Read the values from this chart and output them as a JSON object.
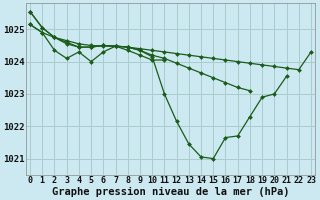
{
  "background_color": "#cce8f0",
  "grid_color": "#aacccc",
  "line_color": "#1a5c1a",
  "xlabel": "Graphe pression niveau de la mer (hPa)",
  "xlabel_fontsize": 7.5,
  "ylabel_fontsize": 6.5,
  "tick_fontsize": 6,
  "ylim": [
    1020.5,
    1025.8
  ],
  "xlim": [
    -0.3,
    23.3
  ],
  "yticks": [
    1021,
    1022,
    1023,
    1024,
    1025
  ],
  "xticks": [
    0,
    1,
    2,
    3,
    4,
    5,
    6,
    7,
    8,
    9,
    10,
    11,
    12,
    13,
    14,
    15,
    16,
    17,
    18,
    19,
    20,
    21,
    22,
    23
  ],
  "series": [
    {
      "x": [
        0,
        1,
        2,
        3,
        4,
        5,
        6,
        7,
        8,
        9,
        10,
        11,
        12,
        13,
        14,
        15,
        16,
        17,
        18,
        19,
        20,
        21,
        22,
        23
      ],
      "y": [
        1025.55,
        1025.05,
        1024.75,
        1024.55,
        1024.45,
        1024.45,
        1024.5,
        1024.48,
        1024.45,
        1024.4,
        1024.35,
        1024.3,
        1024.25,
        1024.2,
        1024.15,
        1024.1,
        1024.05,
        1024.0,
        1023.95,
        1023.9,
        1023.85,
        1023.8,
        1023.75,
        1024.3
      ]
    },
    {
      "x": [
        0,
        1,
        2,
        3,
        4,
        5,
        6,
        7,
        8,
        9,
        10,
        11,
        12,
        13,
        14,
        15,
        16,
        17,
        18,
        19,
        20,
        21
      ],
      "y": [
        1025.55,
        1025.05,
        1024.75,
        1024.6,
        1024.45,
        1024.45,
        1024.5,
        1024.48,
        1024.45,
        1024.35,
        1024.15,
        1023.0,
        1022.15,
        1021.45,
        1021.05,
        1021.0,
        1021.65,
        1021.7,
        1022.3,
        1022.9,
        1023.0,
        1023.55
      ]
    },
    {
      "x": [
        0,
        1,
        2,
        3,
        4,
        5,
        6,
        7,
        8,
        9,
        10,
        11,
        12,
        13,
        14,
        15,
        16,
        17,
        18
      ],
      "y": [
        1025.15,
        1024.9,
        1024.75,
        1024.65,
        1024.55,
        1024.5,
        1024.48,
        1024.48,
        1024.45,
        1024.35,
        1024.2,
        1024.1,
        1023.95,
        1023.8,
        1023.65,
        1023.5,
        1023.35,
        1023.2,
        1023.1
      ]
    },
    {
      "x": [
        0,
        1,
        2,
        3,
        4,
        5,
        6,
        7,
        8,
        9,
        10,
        11
      ],
      "y": [
        1025.15,
        1024.9,
        1024.35,
        1024.1,
        1024.3,
        1024.0,
        1024.3,
        1024.48,
        1024.35,
        1024.2,
        1024.05,
        1024.05
      ]
    }
  ]
}
